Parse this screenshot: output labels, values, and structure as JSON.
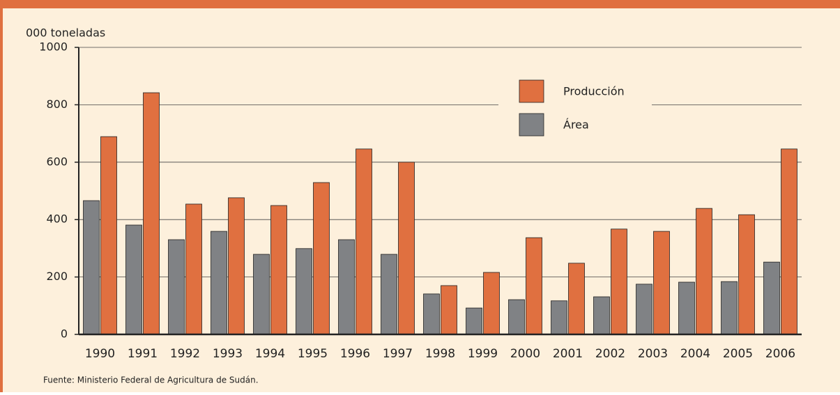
{
  "chart_data": {
    "type": "bar",
    "y_label": "000 toneladas",
    "source": "Fuente: Ministerio Federal de Agricultura de Sudán.",
    "categories": [
      "1990",
      "1991",
      "1992",
      "1993",
      "1994",
      "1995",
      "1996",
      "1997",
      "1998",
      "1999",
      "2000",
      "2001",
      "2002",
      "2003",
      "2004",
      "2005",
      "2006"
    ],
    "series": [
      {
        "name": "Área",
        "color": "#808285",
        "values": [
          466,
          381,
          330,
          359,
          279,
          299,
          330,
          279,
          141,
          92,
          121,
          117,
          131,
          175,
          182,
          184,
          252
        ]
      },
      {
        "name": "Producción",
        "color": "#e07040",
        "values": [
          689,
          842,
          454,
          476,
          449,
          529,
          646,
          600,
          170,
          216,
          337,
          248,
          367,
          359,
          439,
          417,
          646
        ]
      }
    ],
    "ylim": [
      0,
      1000
    ],
    "yticks": [
      0,
      200,
      400,
      600,
      800,
      1000
    ],
    "grid": true
  }
}
